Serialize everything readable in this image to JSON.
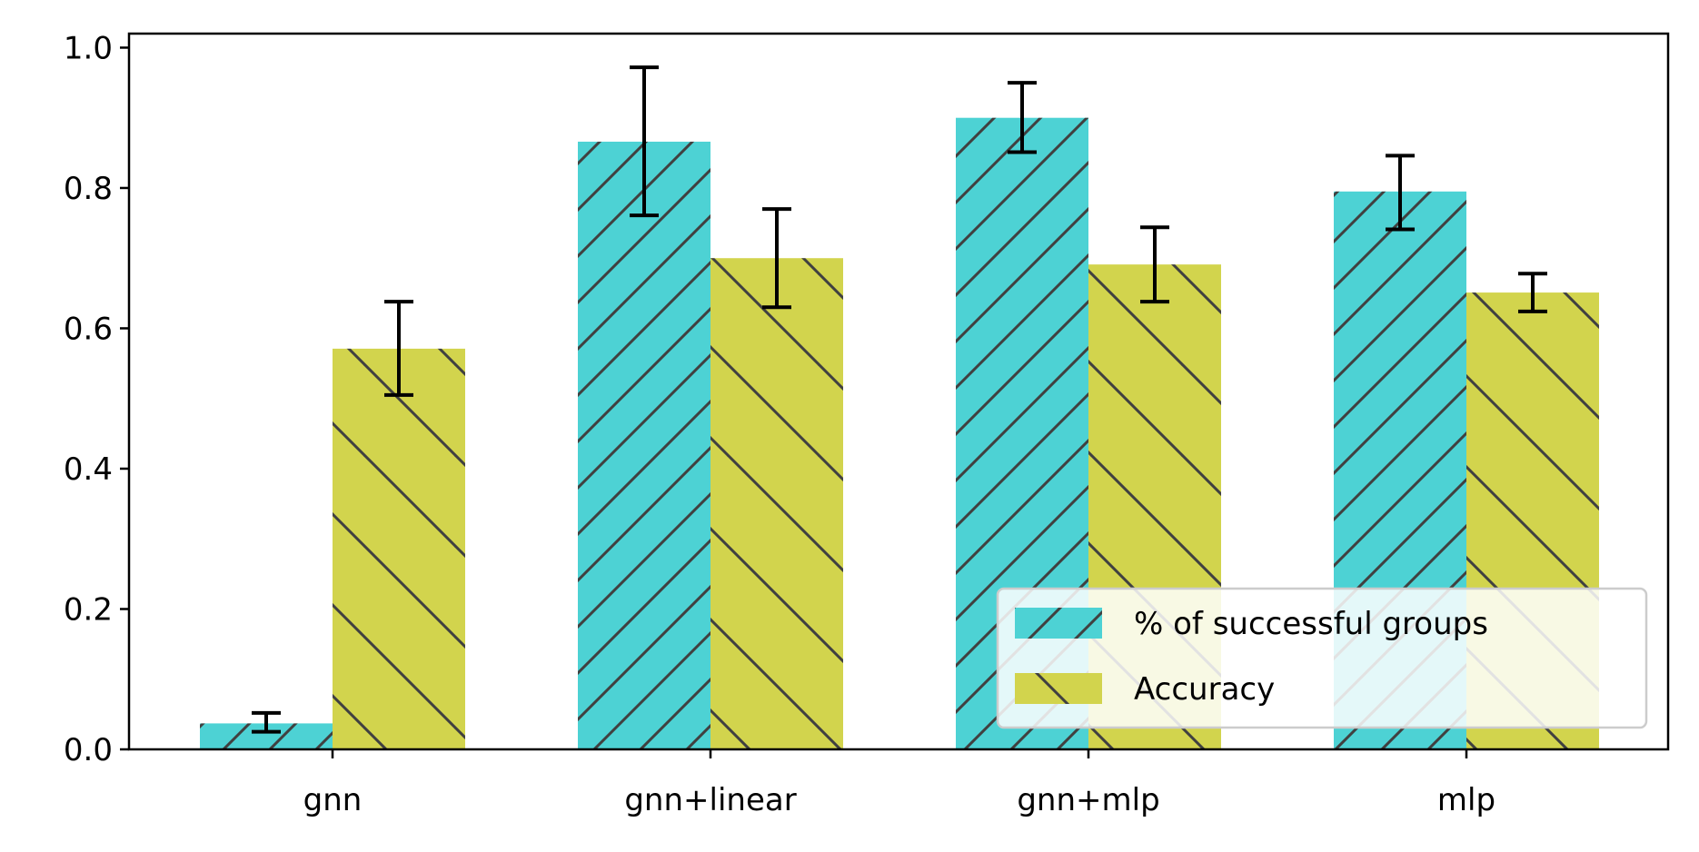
{
  "chart_data": {
    "type": "bar",
    "title": "",
    "xlabel": "",
    "ylabel": "",
    "categories": [
      "gnn",
      "gnn+linear",
      "gnn+mlp",
      "mlp"
    ],
    "ylim": [
      0,
      1.02
    ],
    "yticks": [
      "0.0",
      "0.2",
      "0.4",
      "0.6",
      "0.8",
      "1.0"
    ],
    "grid": false,
    "legend_position": "lower-right",
    "series": [
      {
        "name": "% of successful groups",
        "color": "#4dd2d4",
        "hatch": "forward-diagonal",
        "values": [
          0.037,
          0.866,
          0.9,
          0.795
        ],
        "errors": [
          [
            0.025,
            0.052
          ],
          [
            0.761,
            0.972
          ],
          [
            0.851,
            0.95
          ],
          [
            0.741,
            0.846
          ]
        ]
      },
      {
        "name": "Accuracy",
        "color": "#d2d44d",
        "hatch": "back-diagonal",
        "values": [
          0.571,
          0.7,
          0.691,
          0.651
        ],
        "errors": [
          [
            0.505,
            0.638
          ],
          [
            0.63,
            0.77
          ],
          [
            0.638,
            0.744
          ],
          [
            0.624,
            0.678
          ]
        ]
      }
    ]
  }
}
